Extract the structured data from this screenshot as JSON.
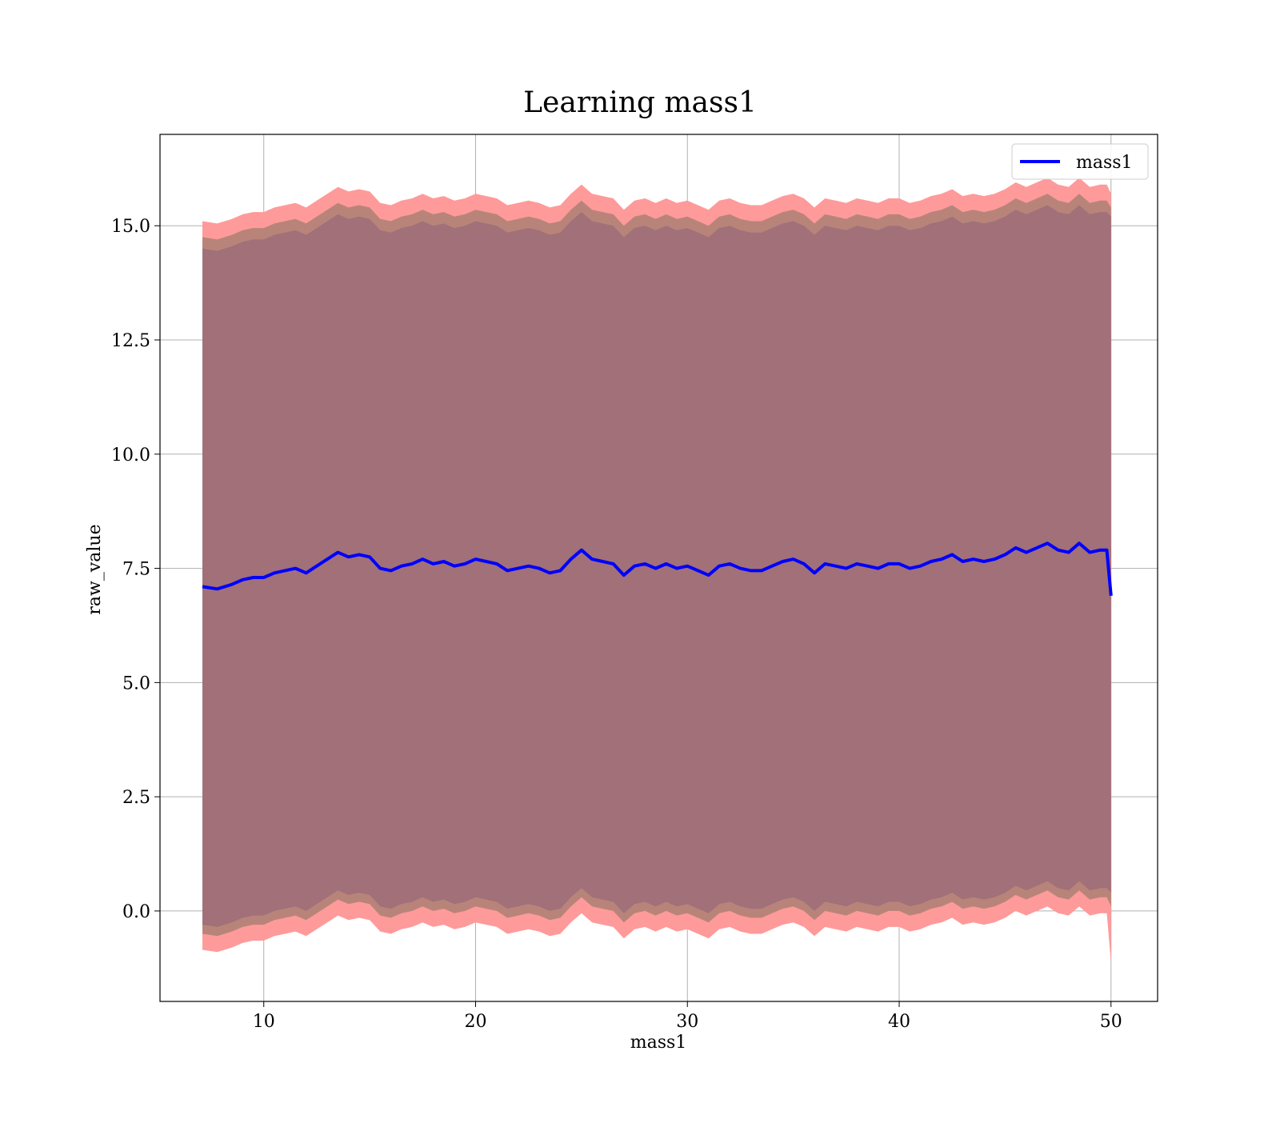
{
  "chart_data": {
    "type": "line",
    "title": "Learning mass1",
    "xlabel": "mass1",
    "ylabel": "raw_value",
    "xlim": [
      5.1,
      52.2
    ],
    "ylim": [
      -1.98,
      17.0
    ],
    "xticks": [
      10,
      20,
      30,
      40,
      50
    ],
    "xtick_labels": [
      "10",
      "20",
      "30",
      "40",
      "50"
    ],
    "yticks": [
      0.0,
      2.5,
      5.0,
      7.5,
      10.0,
      12.5,
      15.0
    ],
    "ytick_labels": [
      "0.0",
      "2.5",
      "5.0",
      "7.5",
      "10.0",
      "12.5",
      "15.0"
    ],
    "grid": true,
    "legend": {
      "position": "top-right",
      "entries": [
        "mass1"
      ]
    },
    "colors": {
      "line": "#0000ff",
      "outer_band": "#ff9a9a",
      "middle_band": "#b8847a",
      "inner_band": "#a17079",
      "grid": "#b0b0b0"
    },
    "series": [
      {
        "name": "mass1",
        "x": [
          7.1,
          7.8,
          8.5,
          9.0,
          9.5,
          10.0,
          10.5,
          11.0,
          11.5,
          12.0,
          12.5,
          13.0,
          13.5,
          14.0,
          14.5,
          15.0,
          15.5,
          16.0,
          16.5,
          17.0,
          17.5,
          18.0,
          18.5,
          19.0,
          19.5,
          20.0,
          20.5,
          21.0,
          21.5,
          22.0,
          22.5,
          23.0,
          23.5,
          24.0,
          24.5,
          25.0,
          25.5,
          26.0,
          26.5,
          27.0,
          27.5,
          28.0,
          28.5,
          29.0,
          29.5,
          30.0,
          30.5,
          31.0,
          31.5,
          32.0,
          32.5,
          33.0,
          33.5,
          34.0,
          34.5,
          35.0,
          35.5,
          36.0,
          36.5,
          37.0,
          37.5,
          38.0,
          38.5,
          39.0,
          39.5,
          40.0,
          40.5,
          41.0,
          41.5,
          42.0,
          42.5,
          43.0,
          43.5,
          44.0,
          44.5,
          45.0,
          45.5,
          46.0,
          46.5,
          47.0,
          47.5,
          48.0,
          48.5,
          49.0,
          49.5,
          49.8,
          50.0
        ],
        "mean": [
          7.1,
          7.05,
          7.15,
          7.25,
          7.3,
          7.3,
          7.4,
          7.45,
          7.5,
          7.4,
          7.55,
          7.7,
          7.85,
          7.75,
          7.8,
          7.75,
          7.5,
          7.45,
          7.55,
          7.6,
          7.7,
          7.6,
          7.65,
          7.55,
          7.6,
          7.7,
          7.65,
          7.6,
          7.45,
          7.5,
          7.55,
          7.5,
          7.4,
          7.45,
          7.7,
          7.9,
          7.7,
          7.65,
          7.6,
          7.35,
          7.55,
          7.6,
          7.5,
          7.6,
          7.5,
          7.55,
          7.45,
          7.35,
          7.55,
          7.6,
          7.5,
          7.45,
          7.45,
          7.55,
          7.65,
          7.7,
          7.6,
          7.4,
          7.6,
          7.55,
          7.5,
          7.6,
          7.55,
          7.5,
          7.6,
          7.6,
          7.5,
          7.55,
          7.65,
          7.7,
          7.8,
          7.65,
          7.7,
          7.65,
          7.7,
          7.8,
          7.95,
          7.85,
          7.95,
          8.05,
          7.9,
          7.85,
          8.05,
          7.85,
          7.9,
          7.9,
          6.9
        ],
        "band_inner_upper": [
          14.5,
          14.45,
          14.55,
          14.65,
          14.7,
          14.7,
          14.8,
          14.85,
          14.9,
          14.8,
          14.95,
          15.1,
          15.25,
          15.15,
          15.2,
          15.15,
          14.9,
          14.85,
          14.95,
          15.0,
          15.1,
          15.0,
          15.05,
          14.95,
          15.0,
          15.1,
          15.05,
          15.0,
          14.85,
          14.9,
          14.95,
          14.9,
          14.8,
          14.85,
          15.1,
          15.3,
          15.1,
          15.05,
          15.0,
          14.75,
          14.95,
          15.0,
          14.9,
          15.0,
          14.9,
          14.95,
          14.85,
          14.75,
          14.95,
          15.0,
          14.9,
          14.85,
          14.85,
          14.95,
          15.05,
          15.1,
          15.0,
          14.8,
          15.0,
          14.95,
          14.9,
          15.0,
          14.95,
          14.9,
          15.0,
          15.0,
          14.9,
          14.95,
          15.05,
          15.1,
          15.2,
          15.05,
          15.1,
          15.05,
          15.1,
          15.2,
          15.35,
          15.25,
          15.35,
          15.45,
          15.3,
          15.25,
          15.45,
          15.25,
          15.3,
          15.3,
          15.2
        ],
        "band_inner_lower": [
          -0.3,
          -0.35,
          -0.25,
          -0.15,
          -0.1,
          -0.1,
          0.0,
          0.05,
          0.1,
          0.0,
          0.15,
          0.3,
          0.45,
          0.35,
          0.4,
          0.35,
          0.1,
          0.05,
          0.15,
          0.2,
          0.3,
          0.2,
          0.25,
          0.15,
          0.2,
          0.3,
          0.25,
          0.2,
          0.05,
          0.1,
          0.15,
          0.1,
          0.0,
          0.05,
          0.3,
          0.5,
          0.3,
          0.25,
          0.2,
          -0.05,
          0.15,
          0.2,
          0.1,
          0.2,
          0.1,
          0.15,
          0.05,
          -0.05,
          0.15,
          0.2,
          0.1,
          0.05,
          0.05,
          0.15,
          0.25,
          0.3,
          0.2,
          0.0,
          0.2,
          0.15,
          0.1,
          0.2,
          0.15,
          0.1,
          0.2,
          0.2,
          0.1,
          0.15,
          0.25,
          0.3,
          0.4,
          0.25,
          0.3,
          0.25,
          0.3,
          0.4,
          0.55,
          0.45,
          0.55,
          0.65,
          0.5,
          0.45,
          0.65,
          0.45,
          0.5,
          0.5,
          0.4
        ],
        "band_middle_upper": [
          14.75,
          14.7,
          14.8,
          14.9,
          14.95,
          14.95,
          15.05,
          15.1,
          15.15,
          15.05,
          15.2,
          15.35,
          15.5,
          15.4,
          15.45,
          15.4,
          15.15,
          15.1,
          15.2,
          15.25,
          15.35,
          15.25,
          15.3,
          15.2,
          15.25,
          15.35,
          15.3,
          15.25,
          15.1,
          15.15,
          15.2,
          15.15,
          15.05,
          15.1,
          15.35,
          15.55,
          15.35,
          15.3,
          15.25,
          15.0,
          15.2,
          15.25,
          15.15,
          15.25,
          15.15,
          15.2,
          15.1,
          15.0,
          15.2,
          15.25,
          15.15,
          15.1,
          15.1,
          15.2,
          15.3,
          15.35,
          15.25,
          15.05,
          15.25,
          15.2,
          15.15,
          15.25,
          15.2,
          15.15,
          15.25,
          15.25,
          15.15,
          15.2,
          15.3,
          15.35,
          15.45,
          15.3,
          15.35,
          15.3,
          15.35,
          15.45,
          15.6,
          15.5,
          15.6,
          15.7,
          15.55,
          15.5,
          15.7,
          15.5,
          15.55,
          15.55,
          15.4
        ],
        "band_middle_lower": [
          -0.5,
          -0.55,
          -0.45,
          -0.35,
          -0.3,
          -0.3,
          -0.2,
          -0.15,
          -0.1,
          -0.2,
          -0.05,
          0.1,
          0.25,
          0.15,
          0.2,
          0.15,
          -0.1,
          -0.15,
          -0.05,
          0.0,
          0.1,
          0.0,
          0.05,
          -0.05,
          0.0,
          0.1,
          0.05,
          0.0,
          -0.15,
          -0.1,
          -0.05,
          -0.1,
          -0.2,
          -0.15,
          0.1,
          0.3,
          0.1,
          0.05,
          0.0,
          -0.25,
          -0.05,
          0.0,
          -0.1,
          0.0,
          -0.1,
          -0.05,
          -0.15,
          -0.25,
          -0.05,
          0.0,
          -0.1,
          -0.15,
          -0.15,
          -0.05,
          0.05,
          0.1,
          0.0,
          -0.2,
          0.0,
          -0.05,
          -0.1,
          0.0,
          -0.05,
          -0.1,
          0.0,
          0.0,
          -0.1,
          -0.05,
          0.05,
          0.1,
          0.2,
          0.05,
          0.1,
          0.05,
          0.1,
          0.2,
          0.35,
          0.25,
          0.35,
          0.45,
          0.3,
          0.25,
          0.45,
          0.25,
          0.3,
          0.3,
          0.1
        ],
        "band_outer_upper": [
          15.1,
          15.05,
          15.15,
          15.25,
          15.3,
          15.3,
          15.4,
          15.45,
          15.5,
          15.4,
          15.55,
          15.7,
          15.85,
          15.75,
          15.8,
          15.75,
          15.5,
          15.45,
          15.55,
          15.6,
          15.7,
          15.6,
          15.65,
          15.55,
          15.6,
          15.7,
          15.65,
          15.6,
          15.45,
          15.5,
          15.55,
          15.5,
          15.4,
          15.45,
          15.7,
          15.9,
          15.7,
          15.65,
          15.6,
          15.35,
          15.55,
          15.6,
          15.5,
          15.6,
          15.5,
          15.55,
          15.45,
          15.35,
          15.55,
          15.6,
          15.5,
          15.45,
          15.45,
          15.55,
          15.65,
          15.7,
          15.6,
          15.4,
          15.6,
          15.55,
          15.5,
          15.6,
          15.55,
          15.5,
          15.6,
          15.6,
          15.5,
          15.55,
          15.65,
          15.7,
          15.8,
          15.65,
          15.7,
          15.65,
          15.7,
          15.8,
          15.95,
          15.85,
          15.95,
          16.05,
          15.9,
          15.85,
          16.05,
          15.85,
          15.9,
          15.9,
          15.7
        ],
        "band_outer_lower": [
          -0.85,
          -0.9,
          -0.8,
          -0.7,
          -0.65,
          -0.65,
          -0.55,
          -0.5,
          -0.45,
          -0.55,
          -0.4,
          -0.25,
          -0.1,
          -0.2,
          -0.15,
          -0.2,
          -0.45,
          -0.5,
          -0.4,
          -0.35,
          -0.25,
          -0.35,
          -0.3,
          -0.4,
          -0.35,
          -0.25,
          -0.3,
          -0.35,
          -0.5,
          -0.45,
          -0.4,
          -0.45,
          -0.55,
          -0.5,
          -0.25,
          -0.05,
          -0.25,
          -0.3,
          -0.35,
          -0.6,
          -0.4,
          -0.35,
          -0.45,
          -0.35,
          -0.45,
          -0.4,
          -0.5,
          -0.6,
          -0.4,
          -0.35,
          -0.45,
          -0.5,
          -0.5,
          -0.4,
          -0.3,
          -0.25,
          -0.35,
          -0.55,
          -0.35,
          -0.4,
          -0.45,
          -0.35,
          -0.4,
          -0.45,
          -0.35,
          -0.35,
          -0.45,
          -0.4,
          -0.3,
          -0.25,
          -0.15,
          -0.3,
          -0.25,
          -0.3,
          -0.25,
          -0.15,
          0.0,
          -0.1,
          0.0,
          0.1,
          -0.05,
          -0.1,
          0.1,
          -0.1,
          -0.05,
          -0.05,
          -1.15
        ]
      }
    ]
  }
}
